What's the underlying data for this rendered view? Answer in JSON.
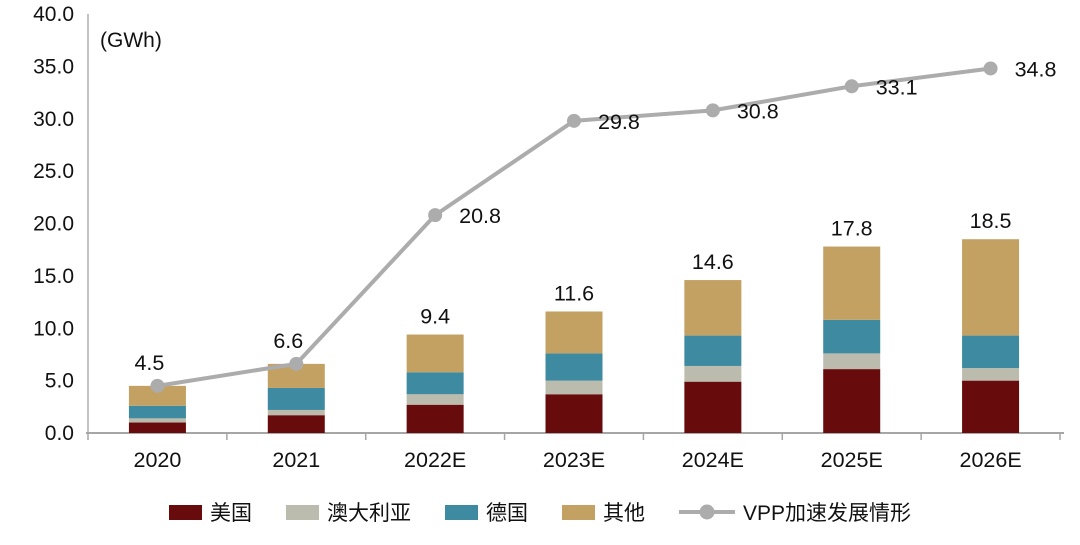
{
  "chart_data": {
    "type": "bar",
    "subtype": "stacked-bars-with-line-overlay",
    "title": "",
    "unit_label": "(GWh)",
    "categories": [
      "2020",
      "2021",
      "2022E",
      "2023E",
      "2024E",
      "2025E",
      "2026E"
    ],
    "bar_series": [
      {
        "name": "美国",
        "color": "#680B0C",
        "values": [
          1.0,
          1.7,
          2.7,
          3.7,
          4.9,
          6.1,
          5.0
        ]
      },
      {
        "name": "澳大利亚",
        "color": "#BBBCAE",
        "values": [
          0.4,
          0.5,
          1.0,
          1.3,
          1.5,
          1.5,
          1.2
        ]
      },
      {
        "name": "德国",
        "color": "#3E8AA0",
        "values": [
          1.2,
          2.1,
          2.1,
          2.6,
          2.9,
          3.2,
          3.1
        ]
      },
      {
        "name": "其他",
        "color": "#C2A162",
        "values": [
          1.9,
          2.3,
          3.6,
          4.0,
          5.3,
          7.0,
          9.2
        ]
      }
    ],
    "bar_totals": [
      4.5,
      6.6,
      9.4,
      11.6,
      14.6,
      17.8,
      18.5
    ],
    "bar_total_labels": {
      "start_index": 2,
      "labels": [
        "9.4",
        "11.6",
        "14.6",
        "17.8",
        "18.5"
      ]
    },
    "line_series": {
      "name": "VPP加速发展情形",
      "color": "#ACACAC",
      "values": [
        4.5,
        6.6,
        20.8,
        29.8,
        30.8,
        33.1,
        34.8
      ],
      "labels": [
        "4.5",
        "6.6",
        "20.8",
        "29.8",
        "30.8",
        "33.1",
        "34.8"
      ]
    },
    "y_axis": {
      "min": 0,
      "max": 40,
      "step": 5,
      "tick_labels": [
        "0.0",
        "5.0",
        "10.0",
        "15.0",
        "20.0",
        "25.0",
        "30.0",
        "35.0",
        "40.0"
      ]
    },
    "x_axis": {
      "tick_marks": true
    },
    "grid": false,
    "legend_position": "bottom",
    "colors": {
      "axis_line": "#A6A6A6",
      "y_axis_line": "#C3C3C3",
      "label_text": "#111111"
    }
  }
}
